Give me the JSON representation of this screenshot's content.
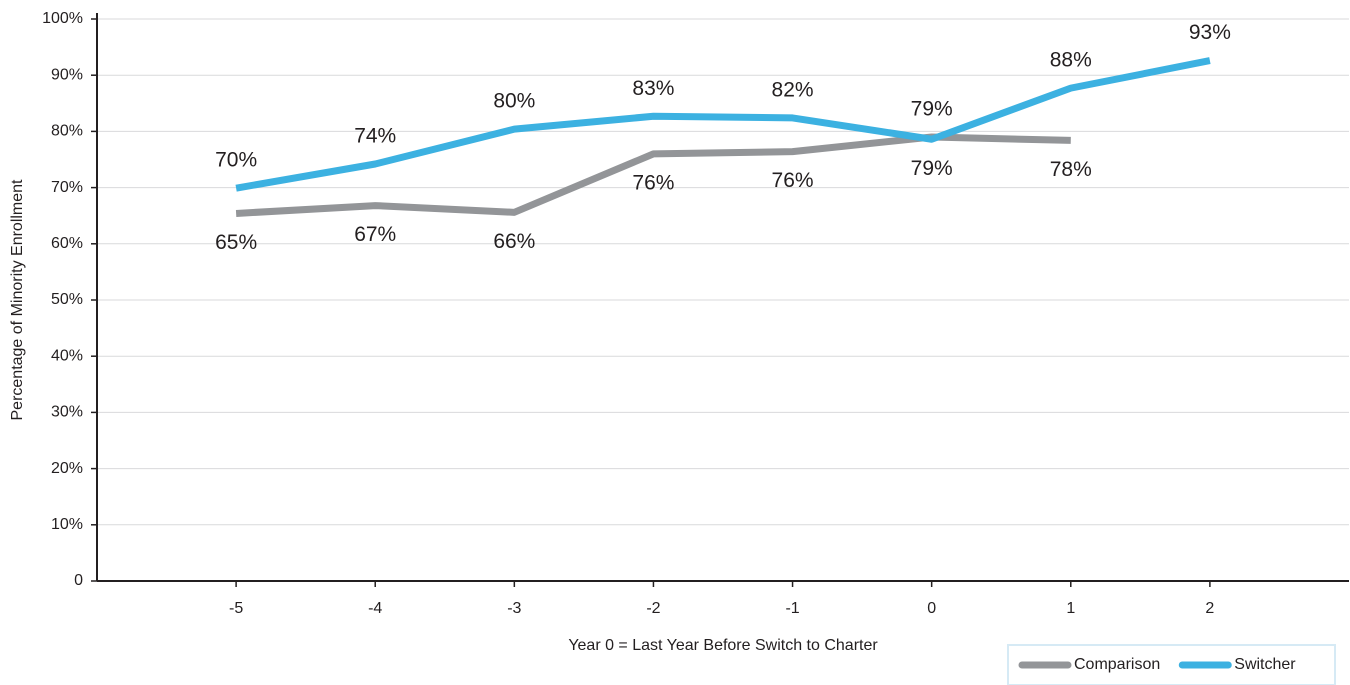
{
  "chart_data": {
    "type": "line",
    "x_label": "Year 0 = Last Year Before Switch to Charter",
    "y_label": "Percentage of Minority Enrollment",
    "x": [
      -5,
      -4,
      -3,
      -2,
      -1,
      0,
      1,
      2
    ],
    "series": [
      {
        "name": "Comparison",
        "color": "#939598",
        "values": [
          65.4,
          66.8,
          65.6,
          76,
          76.4,
          79,
          78.4,
          null
        ],
        "value_labels": [
          "65%",
          "67%",
          "66%",
          "76%",
          "76%",
          "79%",
          "78%",
          null
        ]
      },
      {
        "name": "Switcher",
        "color": "#3cb1e1",
        "values": [
          69.9,
          74.2,
          80.4,
          82.7,
          82.4,
          78.6,
          87.7,
          92.6
        ],
        "value_labels": [
          "70%",
          "74%",
          "80%",
          "83%",
          "82%",
          "79%",
          "88%",
          "93%"
        ]
      }
    ],
    "xlim": [
      -6,
      3
    ],
    "xticks": [
      -5,
      -4,
      -3,
      -2,
      -1,
      0,
      1,
      2
    ],
    "ylim": [
      0,
      100
    ],
    "yticks": [
      0,
      {
        "value": 10,
        "label": "10%"
      },
      {
        "value": 20,
        "label": "20%"
      },
      {
        "value": 30,
        "label": "30%"
      },
      {
        "value": 40,
        "label": "40%"
      },
      {
        "value": 50,
        "label": "50%"
      },
      {
        "value": 60,
        "label": "60%"
      },
      {
        "value": 70,
        "label": "70%"
      },
      {
        "value": 80,
        "label": "80%"
      },
      {
        "value": 90,
        "label": "90%"
      },
      {
        "value": 100,
        "label": "100%"
      }
    ],
    "grid": true,
    "legend": "bottom-right"
  }
}
